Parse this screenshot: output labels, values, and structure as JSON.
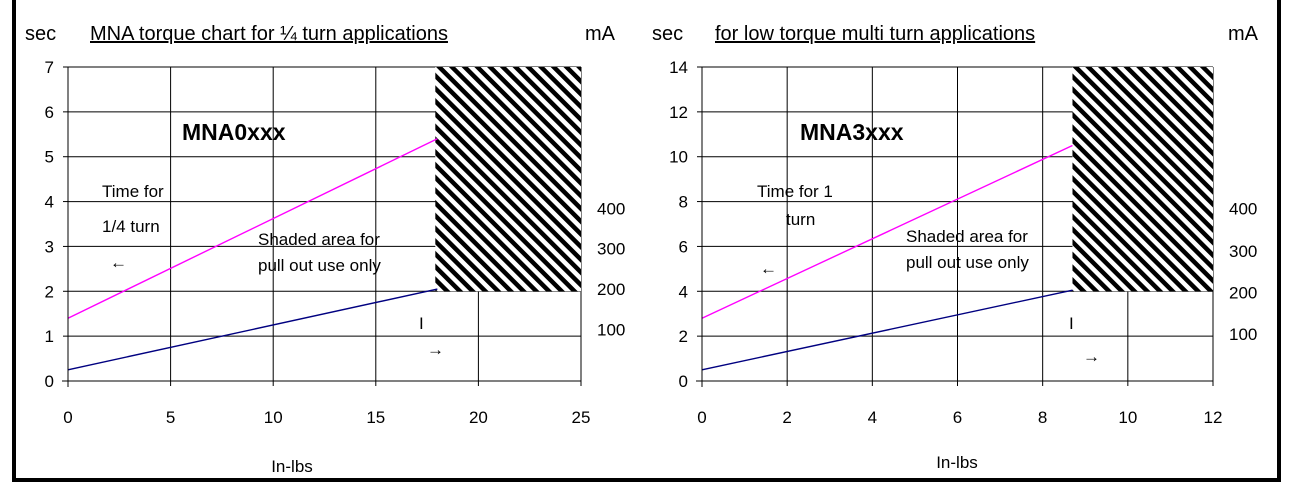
{
  "chart_data": [
    {
      "type": "line",
      "title": "MNA torque chart for ¼ turn applications",
      "left_unit": "sec",
      "right_unit": "mA",
      "xlabel": "In-lbs",
      "xlim": [
        0,
        25
      ],
      "xticks": [
        0,
        5,
        10,
        15,
        20,
        25
      ],
      "ylim": [
        0,
        7
      ],
      "yticks": [
        0,
        1,
        2,
        3,
        4,
        5,
        6,
        7
      ],
      "y2ticks": [
        {
          "label": "100",
          "y": 1.15
        },
        {
          "label": "200",
          "y": 2.05
        },
        {
          "label": "300",
          "y": 2.95
        },
        {
          "label": "400",
          "y": 3.85
        }
      ],
      "grid": true,
      "series": [
        {
          "color": "#ff00ff",
          "x": [
            0,
            18
          ],
          "y": [
            1.4,
            5.4
          ]
        },
        {
          "color": "#000080",
          "x": [
            0,
            18
          ],
          "y": [
            0.25,
            2.05
          ]
        }
      ],
      "shaded_region": {
        "x": [
          17.9,
          25
        ],
        "y": [
          2.0,
          7.0
        ]
      },
      "model_label": "MNA0xxx",
      "time_label_1": "Time for",
      "time_label_2": "1/4 turn",
      "left_arrow": "←",
      "shaded_label_1": "Shaded area for",
      "shaded_label_2": "pull out use only",
      "current_label": "I",
      "right_arrow": "→"
    },
    {
      "type": "line",
      "title": "for low torque multi turn applications",
      "left_unit": "sec",
      "right_unit": "mA",
      "xlabel": "In-lbs",
      "xlim": [
        0,
        12
      ],
      "xticks": [
        0,
        2,
        4,
        6,
        8,
        10,
        12
      ],
      "ylim": [
        0,
        14
      ],
      "yticks": [
        0,
        2,
        4,
        6,
        8,
        10,
        12,
        14
      ],
      "y2ticks": [
        {
          "label": "100",
          "y": 2.1
        },
        {
          "label": "200",
          "y": 3.95
        },
        {
          "label": "300",
          "y": 5.8
        },
        {
          "label": "400",
          "y": 7.7
        }
      ],
      "grid": true,
      "series": [
        {
          "color": "#ff00ff",
          "x": [
            0,
            8.7
          ],
          "y": [
            2.8,
            10.5
          ]
        },
        {
          "color": "#000080",
          "x": [
            0,
            8.7
          ],
          "y": [
            0.5,
            4.05
          ]
        }
      ],
      "shaded_region": {
        "x": [
          8.7,
          12
        ],
        "y": [
          4.0,
          14.0
        ]
      },
      "model_label": "MNA3xxx",
      "time_label_1": "Time for   1",
      "time_label_2": "turn",
      "left_arrow": "←",
      "shaded_label_1": "Shaded area for",
      "shaded_label_2": "pull out use only",
      "current_label": "I",
      "right_arrow": "→"
    }
  ]
}
